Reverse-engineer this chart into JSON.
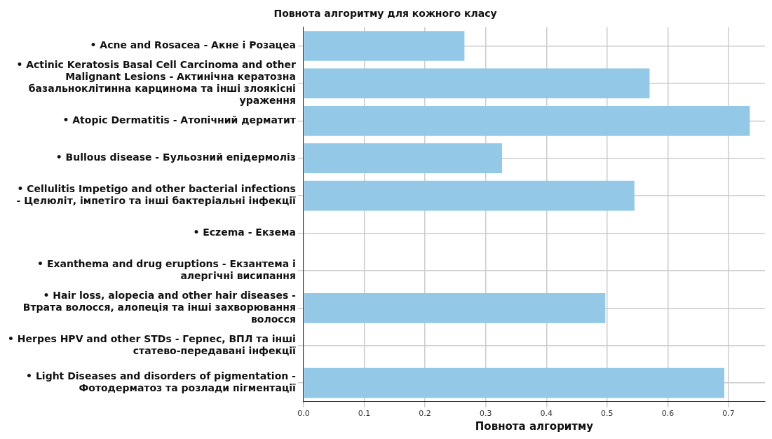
{
  "chart_data": {
    "type": "bar",
    "orientation": "horizontal",
    "title": "Повнота алгоритму для кожного класу",
    "xlabel": "Повнота алгоритму",
    "categories": [
      "• Acne and Rosacea - Акне і Розацеа",
      "• Actinic Keratosis Basal Cell Carcinoma and other Malignant Lesions - Актинічна кератозна базальноклітинна карцинома та інші злоякісні ураження",
      "• Atopic Dermatitis - Атопічний дерматит",
      "• Bullous disease - Бульозний епідермоліз",
      "• Cellulitis Impetigo and other bacterial infections - Целюліт, імпетіго та інші бактеріальні інфекції",
      "• Eczema - Екзема",
      "• Exanthema and drug eruptions - Екзантема і алергічні висипання",
      "• Hair loss, alopecia and other hair diseases - Втрата волосся, алопеція та інші захворювання волосся",
      "• Herpes HPV and other STDs - Герпес, ВПЛ та інші статево-передавані інфекції",
      "• Light Diseases and disorders of pigmentation - Фотодерматоз та розлади пігментації"
    ],
    "values": [
      0.265,
      0.57,
      0.735,
      0.327,
      0.545,
      null,
      null,
      0.497,
      null,
      0.693
    ],
    "color": "#93c8e6",
    "xlim": [
      0,
      0.76
    ],
    "xticks": [
      {
        "value": 0,
        "label": "0.0"
      },
      0.1,
      0.2,
      0.3,
      0.4,
      0.5,
      0.6,
      0.7
    ],
    "grid": true
  }
}
